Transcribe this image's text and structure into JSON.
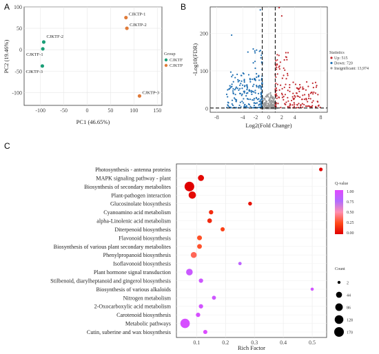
{
  "panels": {
    "a": "A",
    "b": "B",
    "c": "C"
  },
  "chart_data": [
    {
      "type": "scatter",
      "panel": "A",
      "xlabel": "PC1 (46.65%)",
      "ylabel": "PC2 (19.46%)",
      "xlim": [
        -135,
        160
      ],
      "ylim": [
        -130,
        100
      ],
      "xticks": [
        -100,
        -50,
        0,
        50,
        100,
        150
      ],
      "yticks": [
        -100,
        -50,
        0,
        50,
        100
      ],
      "legend_title": "Group",
      "legend_position": "right",
      "series": [
        {
          "name": "CJKTF",
          "color": "#1a9e77",
          "points": [
            {
              "label": "CJKTF-1",
              "x": -95,
              "y": 2
            },
            {
              "label": "CJKTF-2",
              "x": -93,
              "y": 18
            },
            {
              "label": "CJKTF-3",
              "x": -96,
              "y": -38
            }
          ]
        },
        {
          "name": "CJKTP",
          "color": "#e07b39",
          "points": [
            {
              "label": "CJKTP-1",
              "x": 83,
              "y": 75
            },
            {
              "label": "CJKTP-2",
              "x": 85,
              "y": 50
            },
            {
              "label": "CJKTP-3",
              "x": 112,
              "y": -108
            }
          ]
        }
      ],
      "grid": true
    },
    {
      "type": "scatter",
      "panel": "B",
      "title": "",
      "xlabel": "Log2(Fold Change)",
      "ylabel": "-Log10(FDR)",
      "xlim": [
        -9,
        9
      ],
      "ylim": [
        -10,
        270
      ],
      "xticks": [
        -8,
        -4,
        -2,
        0,
        2,
        4,
        8
      ],
      "yticks": [
        0,
        100,
        200
      ],
      "thresholds": {
        "x": [
          -1,
          1
        ],
        "y": 1.3
      },
      "legend_title": "Statistics",
      "legend_position": "right",
      "series": [
        {
          "name": "Up: 515",
          "color": "#c0272d"
        },
        {
          "name": "Down: 720",
          "color": "#1f6fb2"
        },
        {
          "name": "Insignificant: 13,974",
          "color": "#9a9a9a"
        }
      ],
      "grid": true
    },
    {
      "type": "scatter",
      "panel": "C",
      "xlabel": "Rich Factor",
      "xlim": [
        0.03,
        0.55
      ],
      "xticks": [
        0.1,
        0.2,
        0.3,
        0.4,
        0.5
      ],
      "color_legend_title": "Q-value",
      "color_legend_ticks": [
        "1.00",
        "0.75",
        "0.50",
        "0.25",
        "0.00"
      ],
      "size_legend_title": "Count",
      "size_legend_values": [
        2,
        44,
        86,
        128,
        170
      ],
      "grid": true,
      "pathways": [
        {
          "name": "Photosynthesis - antenna proteins",
          "rich": 0.53,
          "count": 6,
          "q": 0.01
        },
        {
          "name": "MAPK signaling pathway - plant",
          "rich": 0.115,
          "count": 45,
          "q": 0.03
        },
        {
          "name": "Biosynthesis of secondary metabolites",
          "rich": 0.075,
          "count": 170,
          "q": 0.0
        },
        {
          "name": "Plant-pathogen interaction",
          "rich": 0.085,
          "count": 80,
          "q": 0.03
        },
        {
          "name": "Glucosinolate biosynthesis",
          "rich": 0.285,
          "count": 8,
          "q": 0.06
        },
        {
          "name": "Cyanoamino acid metabolism",
          "rich": 0.15,
          "count": 14,
          "q": 0.15
        },
        {
          "name": "alpha-Linolenic acid metabolism",
          "rich": 0.145,
          "count": 18,
          "q": 0.14
        },
        {
          "name": "Diterpenoid biosynthesis",
          "rich": 0.19,
          "count": 12,
          "q": 0.22
        },
        {
          "name": "Flavonoid biosynthesis",
          "rich": 0.11,
          "count": 22,
          "q": 0.27
        },
        {
          "name": "Biosynthesis of various plant secondary metabolites",
          "rich": 0.11,
          "count": 20,
          "q": 0.28
        },
        {
          "name": "Phenylpropanoid biosynthesis",
          "rich": 0.09,
          "count": 42,
          "q": 0.35
        },
        {
          "name": "Isoflavonoid biosynthesis",
          "rich": 0.25,
          "count": 4,
          "q": 0.82
        },
        {
          "name": "Plant hormone signal transduction",
          "rich": 0.075,
          "count": 60,
          "q": 0.88
        },
        {
          "name": "Stilbenoid, diarylheptanoid and gingerol biosynthesis",
          "rich": 0.115,
          "count": 14,
          "q": 0.9
        },
        {
          "name": "Biosynthesis of various alkaloids",
          "rich": 0.5,
          "count": 3,
          "q": 0.92
        },
        {
          "name": "Nitrogen metabolism",
          "rich": 0.16,
          "count": 10,
          "q": 0.9
        },
        {
          "name": "2-Oxocarboxylic acid metabolism",
          "rich": 0.115,
          "count": 14,
          "q": 0.92
        },
        {
          "name": "Carotenoid biosynthesis",
          "rich": 0.105,
          "count": 14,
          "q": 0.95
        },
        {
          "name": "Metabolic pathways",
          "rich": 0.06,
          "count": 160,
          "q": 0.95
        },
        {
          "name": "Cutin, suberine and wax biosynthesis",
          "rich": 0.13,
          "count": 12,
          "q": 0.98
        }
      ]
    }
  ]
}
